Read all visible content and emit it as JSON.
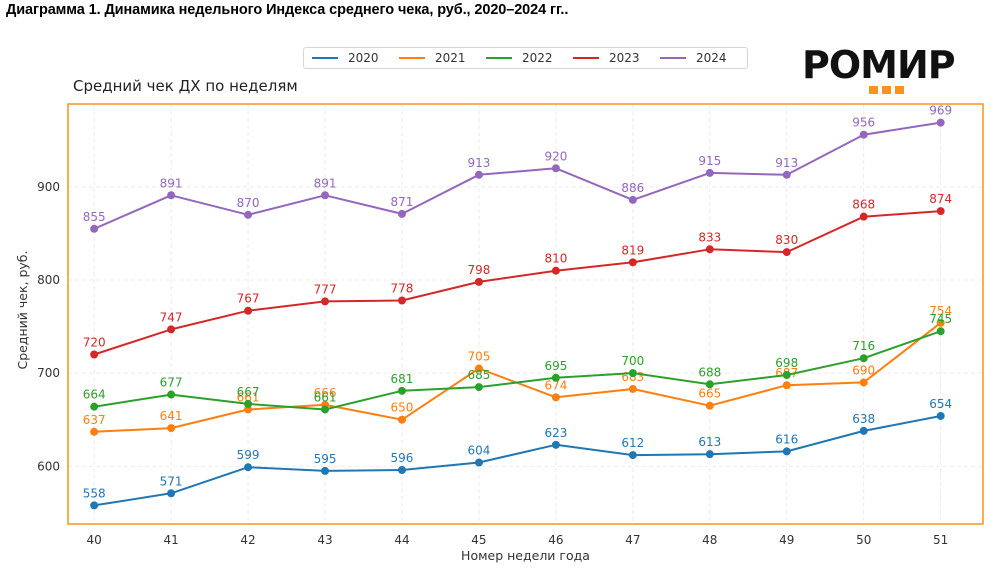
{
  "page": {
    "title": "Диаграмма 1. Динамика недельного Индекса среднего чека, руб., 2020–2024 гг.."
  },
  "logo": {
    "text": "РОМИР",
    "accent_color": "#f7941d"
  },
  "chart_data": {
    "type": "line",
    "title": "Средний чек ДХ по неделям",
    "xlabel": "Номер недели года",
    "ylabel": "Средний чек, руб.",
    "x": [
      40,
      41,
      42,
      43,
      44,
      45,
      46,
      47,
      48,
      49,
      50,
      51
    ],
    "x_tick_labels": [
      "40",
      "41",
      "42",
      "43",
      "44",
      "45",
      "46",
      "47",
      "48",
      "49",
      "50",
      "51"
    ],
    "y_ticks": [
      600,
      700,
      800,
      900
    ],
    "y_tick_labels": [
      "600",
      "700",
      "800",
      "900"
    ],
    "ylim": [
      538,
      989
    ],
    "xlim": [
      39.66,
      51.55
    ],
    "grid": true,
    "legend_position": "top-center",
    "frame_color": "#f7941d",
    "series": [
      {
        "name": "2020",
        "color": "#1f77b4",
        "values": [
          558,
          571,
          599,
          595,
          596,
          604,
          623,
          612,
          613,
          616,
          638,
          654
        ]
      },
      {
        "name": "2021",
        "color": "#ff7f0e",
        "values": [
          637,
          641,
          661,
          666,
          650,
          705,
          674,
          683,
          665,
          687,
          690,
          754
        ]
      },
      {
        "name": "2022",
        "color": "#2ca02c",
        "values": [
          664,
          677,
          667,
          661,
          681,
          685,
          695,
          700,
          688,
          698,
          716,
          745
        ]
      },
      {
        "name": "2023",
        "color": "#d62728",
        "values": [
          720,
          747,
          767,
          777,
          778,
          798,
          810,
          819,
          833,
          830,
          868,
          874
        ]
      },
      {
        "name": "2024",
        "color": "#9467bd",
        "values": [
          855,
          891,
          870,
          891,
          871,
          913,
          920,
          886,
          915,
          913,
          956,
          969
        ]
      }
    ]
  }
}
